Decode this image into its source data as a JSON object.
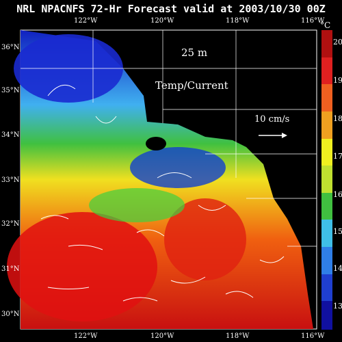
{
  "header": {
    "title": "NRL NPACNFS 72-Hr Forecast valid at 2003/10/30 00Z"
  },
  "map": {
    "depth_label": "25 m",
    "field_label": "Temp/Current",
    "scale_label": "10 cm/s",
    "lon_ticks": [
      "122°W",
      "120°W",
      "118°W",
      "116°W"
    ],
    "lat_ticks": [
      "36°N",
      "35°N",
      "34°N",
      "33°N",
      "32°N",
      "31°N",
      "30°N"
    ]
  },
  "colorbar": {
    "unit": "°C",
    "ticks": [
      "20",
      "19",
      "18",
      "17",
      "16",
      "15",
      "14",
      "13"
    ],
    "colors": [
      "#1010a0",
      "#1f3fd0",
      "#2f7fe8",
      "#3fbfe8",
      "#40c040",
      "#c0e030",
      "#f0f020",
      "#f0a020",
      "#f06020",
      "#e02020",
      "#b01010"
    ]
  }
}
